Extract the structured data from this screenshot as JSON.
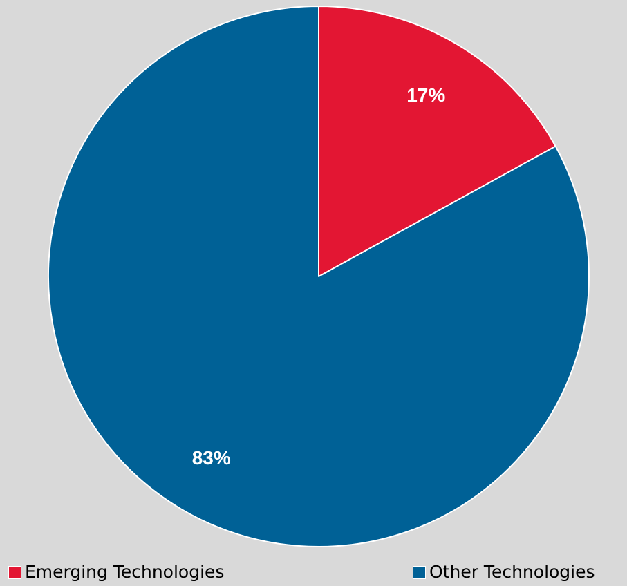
{
  "chart_data": {
    "type": "pie",
    "slices": [
      {
        "label": "Emerging Technologies",
        "value": 17,
        "data_label": "17%",
        "color": "#e31633"
      },
      {
        "label": "Other Technologies",
        "value": 83,
        "data_label": "83%",
        "color": "#006196"
      }
    ],
    "start_angle": "12 o'clock",
    "direction": "clockwise",
    "legend_position": "bottom",
    "title": ""
  },
  "background": "#d9d9d9",
  "legend": {
    "items": [
      {
        "label": "Emerging Technologies",
        "color": "#e31633"
      },
      {
        "label": "Other Technologies",
        "color": "#006196"
      }
    ]
  }
}
